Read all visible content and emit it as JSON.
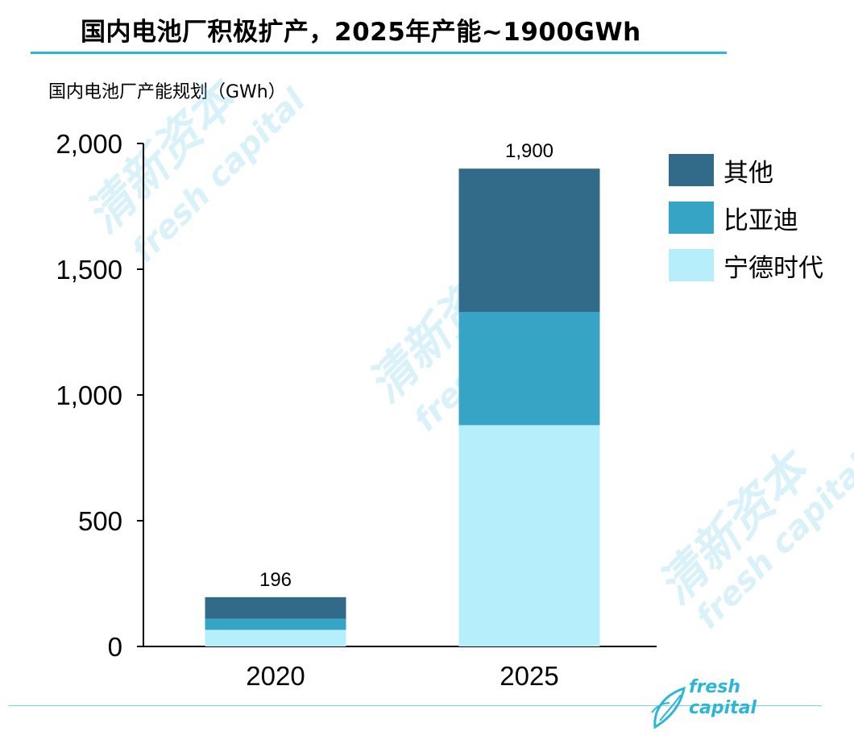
{
  "title": "国内电池厂积极扩产，2025年产能~1900GWh",
  "y_unit_label": "国内电池厂产能规划（GWh）",
  "watermark": {
    "cn": "清新资本",
    "en": "fresh capital"
  },
  "logo": {
    "line1": "fresh",
    "line2": "capital"
  },
  "colors": {
    "accent": "#2bb6d8",
    "axis": "#000000"
  },
  "chart_data": {
    "type": "bar",
    "stacked": true,
    "categories": [
      "2020",
      "2025"
    ],
    "series": [
      {
        "name": "宁德时代",
        "color": "#b6eefc",
        "values": [
          66,
          880
        ]
      },
      {
        "name": "比亚迪",
        "color": "#36a4c4",
        "values": [
          44,
          450
        ]
      },
      {
        "name": "其他",
        "color": "#326b8a",
        "values": [
          86,
          570
        ]
      }
    ],
    "totals": [
      196,
      1900
    ],
    "total_labels": [
      "196",
      "1,900"
    ],
    "ylim": [
      0,
      2000
    ],
    "yticks": [
      0,
      500,
      1000,
      1500,
      2000
    ],
    "ytick_labels": [
      "0",
      "500",
      "1,000",
      "1,500",
      "2,000"
    ],
    "legend_position": "right",
    "grid": false
  }
}
